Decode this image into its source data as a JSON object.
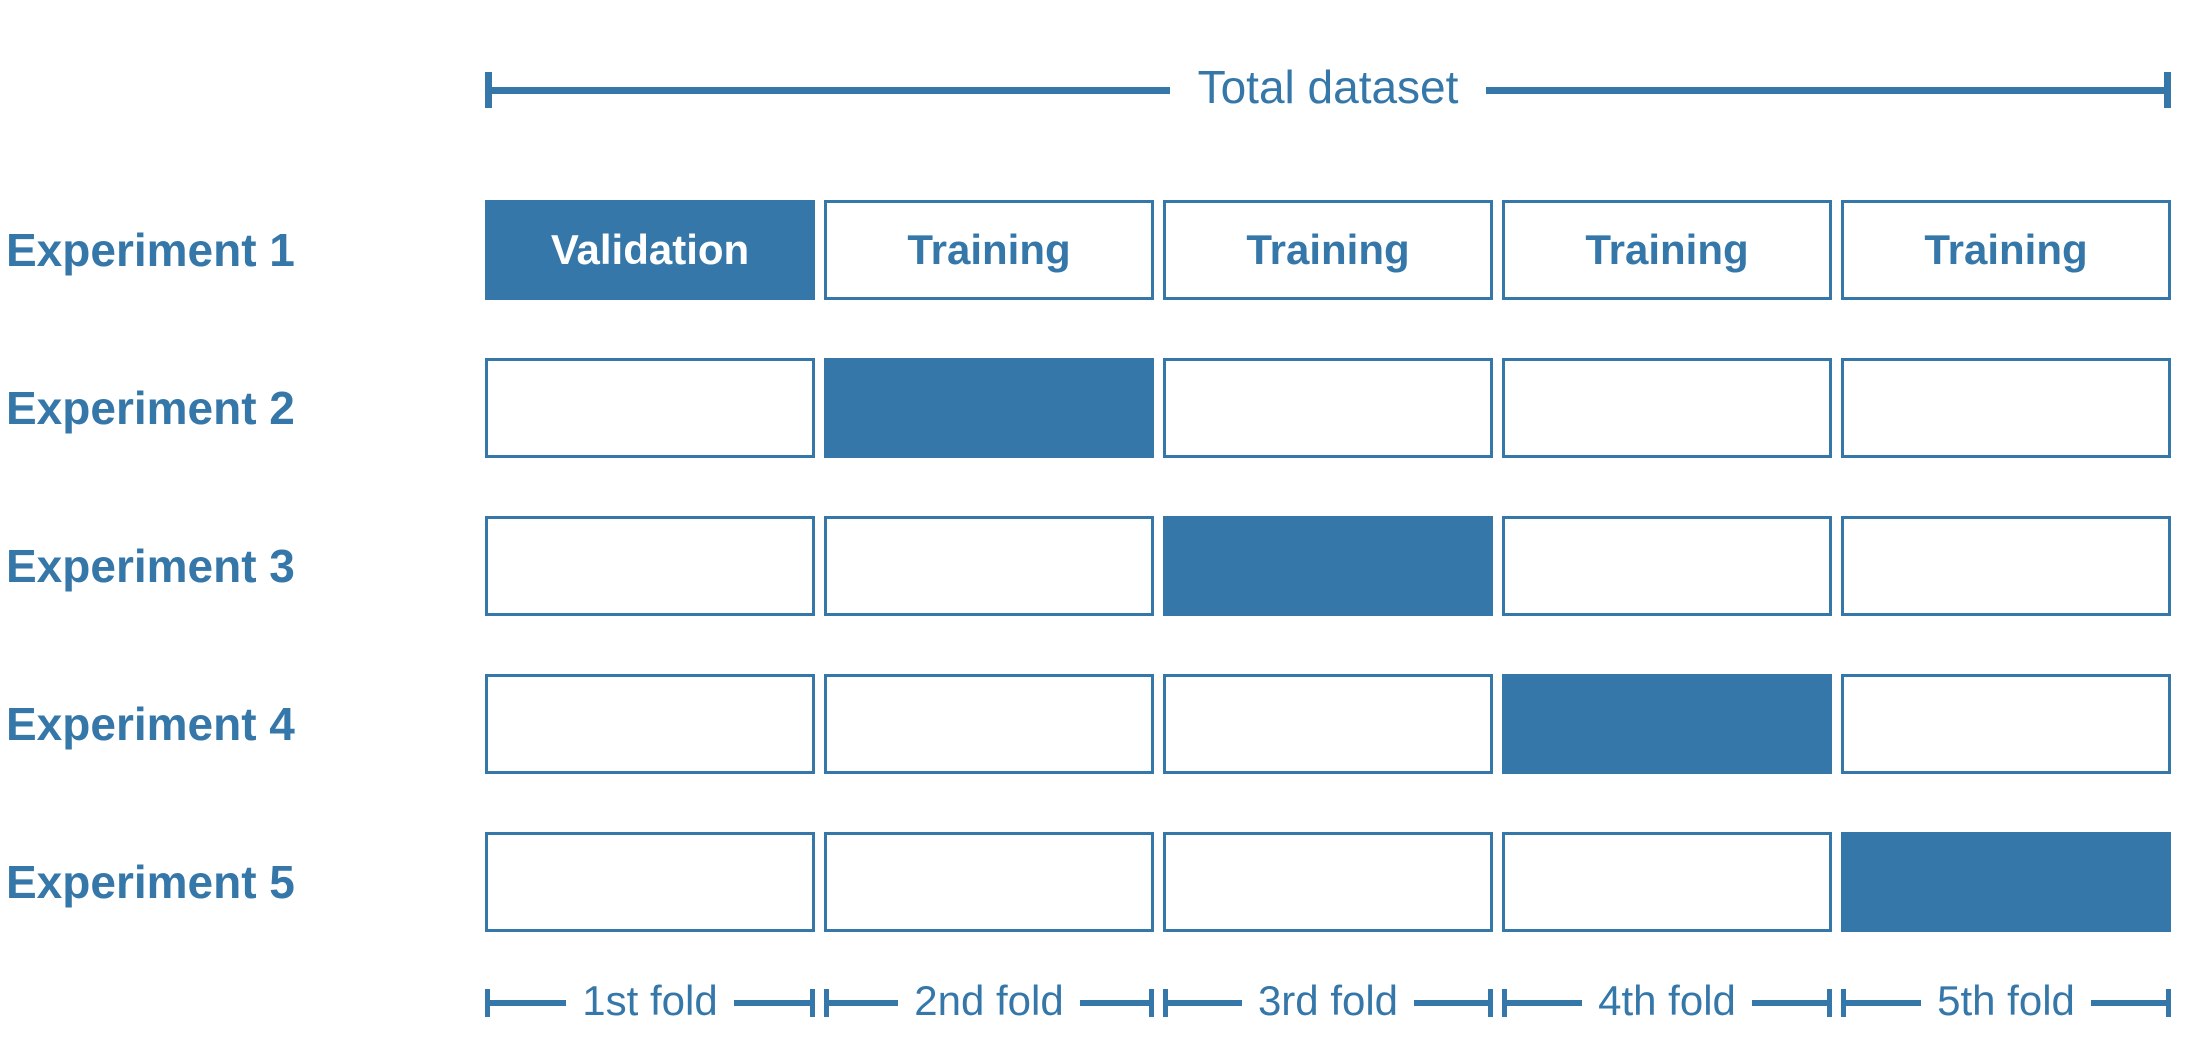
{
  "title": "Total dataset",
  "colors": {
    "accent": "#3577A8",
    "validation_text": "#FFFFFF",
    "background": "#FFFFFF"
  },
  "experiments": [
    {
      "label": "Experiment 1",
      "validation_fold": 0,
      "cells": [
        "Validation",
        "Training",
        "Training",
        "Training",
        "Training"
      ]
    },
    {
      "label": "Experiment 2",
      "validation_fold": 1,
      "cells": [
        "",
        "",
        "",
        "",
        ""
      ]
    },
    {
      "label": "Experiment 3",
      "validation_fold": 2,
      "cells": [
        "",
        "",
        "",
        "",
        ""
      ]
    },
    {
      "label": "Experiment 4",
      "validation_fold": 3,
      "cells": [
        "",
        "",
        "",
        "",
        ""
      ]
    },
    {
      "label": "Experiment 5",
      "validation_fold": 4,
      "cells": [
        "",
        "",
        "",
        "",
        ""
      ]
    }
  ],
  "fold_axis": {
    "labels": [
      "1st fold",
      "2nd fold",
      "3rd fold",
      "4th fold",
      "5th fold"
    ]
  }
}
